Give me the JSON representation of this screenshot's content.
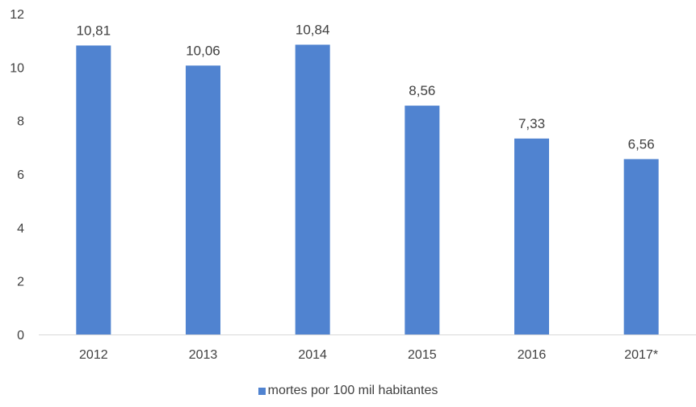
{
  "chart_data": {
    "type": "bar",
    "categories": [
      "2012",
      "2013",
      "2014",
      "2015",
      "2016",
      "2017*"
    ],
    "series": [
      {
        "name": "mortes por 100 mil habitantes",
        "values": [
          10.81,
          10.06,
          10.84,
          8.56,
          7.33,
          6.56
        ],
        "value_labels": [
          "10,81",
          "10,06",
          "10,84",
          "8,56",
          "7,33",
          "6,56"
        ],
        "color": "#5083d0"
      }
    ],
    "ylim": [
      0,
      12
    ],
    "yticks": [
      0,
      2,
      4,
      6,
      8,
      10,
      12
    ],
    "grid": false,
    "legend_position": "bottom",
    "title": "",
    "xlabel": "",
    "ylabel": ""
  }
}
